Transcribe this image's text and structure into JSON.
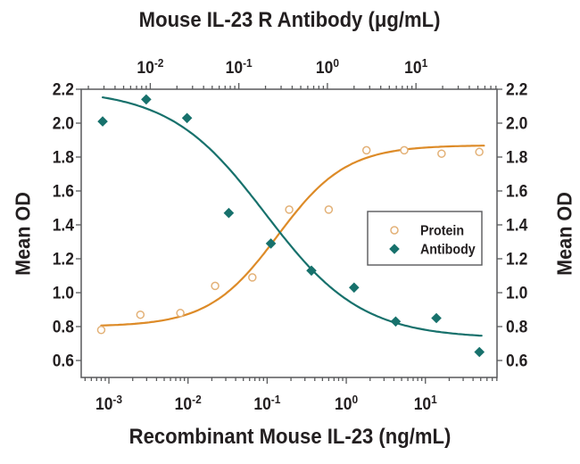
{
  "chart_data": {
    "type": "scatter",
    "top_axis": {
      "label": "Mouse IL-23 R Antibody (μg/mL)",
      "scale": "log",
      "tick_exponents": [
        -2,
        -1,
        0,
        1
      ],
      "log_range": [
        -2.78,
        1.915
      ]
    },
    "bottom_axis": {
      "label": "Recombinant Mouse IL-23 (ng/mL)",
      "scale": "log",
      "tick_exponents": [
        -3,
        -2,
        -1,
        0,
        1
      ],
      "log_range": [
        -3.35,
        1.905
      ]
    },
    "y_axis": {
      "label": "Mean OD",
      "range": [
        0.5,
        2.2
      ],
      "ticks": [
        0.6,
        0.8,
        1.0,
        1.2,
        1.4,
        1.6,
        1.8,
        2.0,
        2.2
      ],
      "mirrored_right": true
    },
    "series": [
      {
        "name": "Protein",
        "x_axis": "bottom",
        "x_unit": "ng/mL",
        "marker": "open-circle",
        "line_color": "#DD8B28",
        "marker_color": "#E3B177",
        "points": [
          [
            0.0008,
            0.78
          ],
          [
            0.0025,
            0.87
          ],
          [
            0.008,
            0.88
          ],
          [
            0.022,
            1.04
          ],
          [
            0.065,
            1.09
          ],
          [
            0.19,
            1.49
          ],
          [
            0.6,
            1.49
          ],
          [
            1.8,
            1.84
          ],
          [
            5.4,
            1.84
          ],
          [
            16,
            1.82
          ],
          [
            48,
            1.83
          ]
        ],
        "fit_curve": {
          "shape": "4PL",
          "direction": "rising",
          "bottom": 0.8,
          "top": 1.87,
          "ec50": 0.135,
          "hill": 1.0,
          "x_range": [
            0.0008,
            55
          ]
        }
      },
      {
        "name": "Antibody",
        "x_axis": "top",
        "x_unit": "μg/mL",
        "marker": "filled-diamond",
        "line_color": "#17716C",
        "marker_color": "#17716C",
        "points": [
          [
            0.0029,
            2.01
          ],
          [
            0.009,
            2.14
          ],
          [
            0.026,
            2.03
          ],
          [
            0.077,
            1.47
          ],
          [
            0.23,
            1.29
          ],
          [
            0.66,
            1.13
          ],
          [
            2.0,
            1.03
          ],
          [
            5.9,
            0.83
          ],
          [
            17,
            0.85
          ],
          [
            52,
            0.65
          ]
        ],
        "fit_curve": {
          "shape": "4PL",
          "direction": "falling",
          "bottom": 0.73,
          "top": 2.2,
          "ec50": 0.2,
          "hill": 0.8,
          "x_range": [
            0.0029,
            55
          ]
        }
      }
    ],
    "legend": {
      "position": "inside-middle-right",
      "entries": [
        {
          "label": "Protein",
          "series": "Protein"
        },
        {
          "label": "Antibody",
          "series": "Antibody"
        }
      ]
    },
    "colors": {
      "text": "#231F20",
      "frame": "#58595B",
      "background": "#FFFFFF"
    }
  }
}
